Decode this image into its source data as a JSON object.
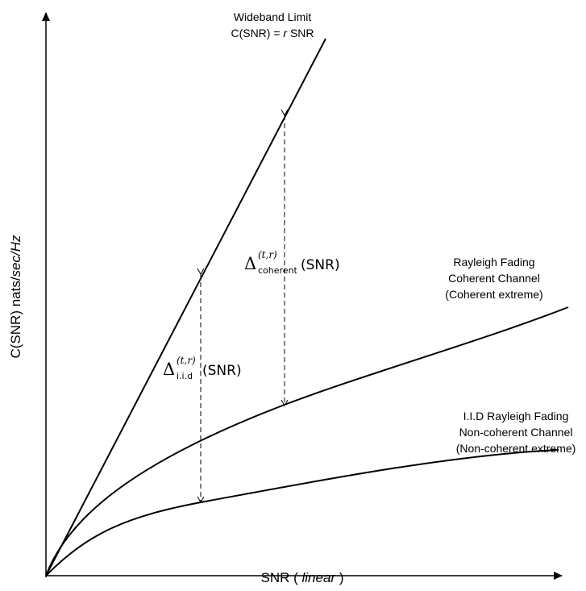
{
  "axes": {
    "y_label_prefix": "C(SNR) nats/",
    "y_label_italic": "sec/Hz",
    "x_label_prefix": "SNR ( ",
    "x_label_italic": "linear",
    "x_label_suffix": " )"
  },
  "curves": {
    "wideband": {
      "line1": "Wideband Limit",
      "line2_prefix": "C(SNR) = ",
      "line2_italic": "r",
      "line2_suffix": " SNR"
    },
    "coherent": {
      "line1": "Rayleigh Fading",
      "line2": "Coherent Channel",
      "line3": "(Coherent extreme)"
    },
    "noncoherent": {
      "line1": "I.I.D Rayleigh  Fading",
      "line2": "Non-coherent Channel",
      "line3": "(Non-coherent extreme)"
    }
  },
  "gaps": {
    "coherent": {
      "symbol": "Δ",
      "superscript": "(t,r)",
      "subscript": "coherent",
      "argument": "(SNR)"
    },
    "iid": {
      "symbol": "Δ",
      "superscript": "(t,r)",
      "subscript": "i.i.d",
      "argument": "(SNR)"
    }
  },
  "colors": {
    "line": "#000000",
    "background": "#ffffff"
  }
}
